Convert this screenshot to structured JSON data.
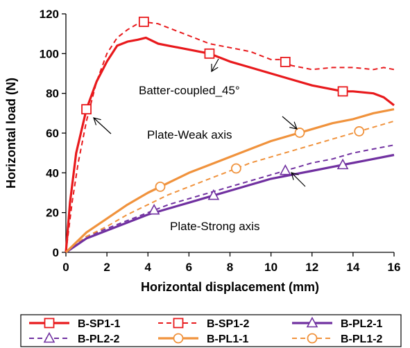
{
  "chart_data": {
    "type": "line",
    "xlabel": "Horizontal displacement (mm)",
    "ylabel": "Horizontal load (N)",
    "xlim": [
      0,
      16
    ],
    "ylim": [
      0,
      120
    ],
    "xticks": [
      0,
      2,
      4,
      6,
      8,
      10,
      12,
      14,
      16
    ],
    "yticks": [
      0,
      20,
      40,
      60,
      80,
      100,
      120
    ],
    "grid": false,
    "legend_position": "bottom",
    "annotations": [
      {
        "text": "Batter-coupled_45°"
      },
      {
        "text": "Plate-Weak axis"
      },
      {
        "text": "Plate-Strong axis"
      }
    ],
    "series": [
      {
        "name": "B-SP1-1",
        "color": "#e8191c",
        "dash": "solid",
        "marker": "square",
        "x": [
          0,
          0.2,
          0.5,
          1.0,
          1.5,
          2.0,
          2.5,
          3.0,
          3.5,
          3.9,
          4.5,
          5.0,
          6.0,
          7.0,
          8.0,
          9.0,
          10.0,
          11.0,
          12.0,
          13.0,
          13.5,
          14.0,
          15.0,
          15.5,
          16.0
        ],
        "y": [
          0,
          25,
          50,
          72,
          86,
          96,
          104,
          106,
          107,
          108,
          105,
          104,
          102,
          100,
          96,
          93,
          90,
          87,
          84,
          82,
          81,
          81,
          80,
          78,
          74
        ],
        "marker_x": [
          1.0,
          7.0,
          13.5
        ]
      },
      {
        "name": "B-SP1-2",
        "color": "#e8191c",
        "dash": "dashed",
        "marker": "square",
        "x": [
          0,
          0.3,
          0.6,
          1.0,
          1.5,
          2.0,
          2.5,
          3.0,
          3.5,
          3.8,
          4.5,
          5.0,
          6.0,
          7.0,
          8.0,
          9.0,
          10.0,
          10.5,
          11.0,
          12.0,
          13.0,
          14.0,
          15.0,
          15.5,
          16.0
        ],
        "y": [
          0,
          25,
          45,
          66,
          86,
          100,
          108,
          112,
          115,
          116,
          115,
          113,
          109,
          105,
          103,
          101,
          97,
          97,
          94,
          92,
          93,
          93,
          92,
          93,
          92
        ],
        "marker_x": [
          3.8,
          10.7
        ]
      },
      {
        "name": "B-PL2-1",
        "color": "#7030a0",
        "dash": "solid",
        "marker": "triangle",
        "x": [
          0,
          1,
          2,
          3,
          4,
          5,
          6,
          7,
          8,
          9,
          10,
          11,
          12,
          13,
          14,
          15,
          16
        ],
        "y": [
          0,
          7,
          11,
          15,
          19,
          22,
          25,
          28,
          31,
          34,
          37,
          39,
          41,
          43,
          45,
          47,
          49
        ],
        "marker_x": [
          7.2,
          13.5
        ]
      },
      {
        "name": "B-PL2-2",
        "color": "#7030a0",
        "dash": "dashed",
        "marker": "triangle",
        "x": [
          0,
          1,
          2,
          3,
          4,
          5,
          6,
          7,
          8,
          9,
          10,
          11,
          12,
          13,
          14,
          15,
          16
        ],
        "y": [
          0,
          8,
          12,
          16,
          20,
          24,
          27,
          30,
          33,
          36,
          39,
          42,
          45,
          47,
          50,
          52,
          54
        ],
        "marker_x": [
          4.3,
          10.7
        ]
      },
      {
        "name": "B-PL1-1",
        "color": "#f0923c",
        "dash": "solid",
        "marker": "circle",
        "x": [
          0,
          1,
          2,
          3,
          4,
          5,
          6,
          7,
          8,
          9,
          10,
          11,
          12,
          13,
          14,
          15,
          16
        ],
        "y": [
          0,
          10,
          17,
          24,
          30,
          35,
          40,
          44,
          48,
          52,
          56,
          59,
          62,
          65,
          67,
          70,
          72
        ],
        "marker_x": [
          4.6,
          11.4
        ]
      },
      {
        "name": "B-PL1-2",
        "color": "#f0923c",
        "dash": "dashed",
        "marker": "circle",
        "x": [
          0,
          1,
          2,
          3,
          4,
          5,
          6,
          7,
          8,
          9,
          10,
          11,
          12,
          13,
          14,
          15,
          16
        ],
        "y": [
          0,
          8,
          13,
          19,
          24,
          29,
          33,
          37,
          41,
          45,
          48,
          51,
          54,
          57,
          60,
          63,
          66
        ],
        "marker_x": [
          8.3,
          14.3
        ]
      }
    ]
  }
}
